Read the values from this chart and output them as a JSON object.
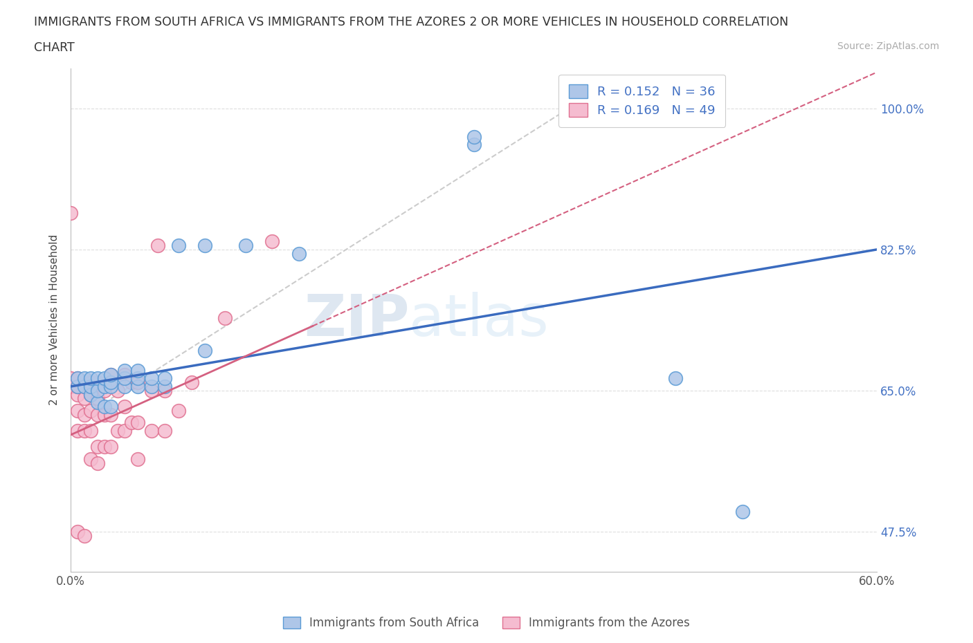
{
  "title_line1": "IMMIGRANTS FROM SOUTH AFRICA VS IMMIGRANTS FROM THE AZORES 2 OR MORE VEHICLES IN HOUSEHOLD CORRELATION",
  "title_line2": "CHART",
  "source_text": "Source: ZipAtlas.com",
  "ylabel": "2 or more Vehicles in Household",
  "xlim": [
    0.0,
    0.6
  ],
  "ylim": [
    0.425,
    1.05
  ],
  "ytick_labels": [
    "47.5%",
    "65.0%",
    "82.5%",
    "100.0%"
  ],
  "ytick_values": [
    0.475,
    0.65,
    0.825,
    1.0
  ],
  "xtick_values": [
    0.0,
    0.1,
    0.2,
    0.3,
    0.4,
    0.5,
    0.6
  ],
  "xtick_labels": [
    "0.0%",
    "",
    "",
    "",
    "",
    "",
    "60.0%"
  ],
  "r_blue": 0.152,
  "n_blue": 36,
  "r_pink": 0.169,
  "n_pink": 49,
  "legend_label_blue": "Immigrants from South Africa",
  "legend_label_pink": "Immigrants from the Azores",
  "blue_color": "#aec6e8",
  "pink_color": "#f5bcd0",
  "blue_edge": "#5b9bd5",
  "pink_edge": "#e07090",
  "trend_blue": "#3a6bbf",
  "trend_pink": "#d46080",
  "trend_gray": "#cccccc",
  "watermark_zip": "ZIP",
  "watermark_atlas": "atlas",
  "blue_scatter_x": [
    0.005,
    0.005,
    0.01,
    0.01,
    0.015,
    0.015,
    0.015,
    0.02,
    0.02,
    0.02,
    0.025,
    0.025,
    0.025,
    0.03,
    0.03,
    0.03,
    0.03,
    0.04,
    0.04,
    0.04,
    0.05,
    0.05,
    0.05,
    0.06,
    0.06,
    0.07,
    0.07,
    0.08,
    0.1,
    0.1,
    0.13,
    0.17,
    0.3,
    0.3,
    0.45,
    0.5
  ],
  "blue_scatter_y": [
    0.655,
    0.665,
    0.655,
    0.665,
    0.645,
    0.655,
    0.665,
    0.635,
    0.65,
    0.665,
    0.63,
    0.655,
    0.665,
    0.63,
    0.655,
    0.66,
    0.67,
    0.655,
    0.665,
    0.675,
    0.655,
    0.665,
    0.675,
    0.655,
    0.665,
    0.655,
    0.665,
    0.83,
    0.7,
    0.83,
    0.83,
    0.82,
    0.955,
    0.965,
    0.665,
    0.5
  ],
  "pink_scatter_x": [
    0.0,
    0.0,
    0.0,
    0.005,
    0.005,
    0.005,
    0.005,
    0.005,
    0.005,
    0.01,
    0.01,
    0.01,
    0.01,
    0.01,
    0.015,
    0.015,
    0.015,
    0.015,
    0.015,
    0.02,
    0.02,
    0.02,
    0.02,
    0.02,
    0.025,
    0.025,
    0.025,
    0.03,
    0.03,
    0.03,
    0.035,
    0.035,
    0.04,
    0.04,
    0.04,
    0.045,
    0.045,
    0.05,
    0.05,
    0.05,
    0.06,
    0.06,
    0.065,
    0.07,
    0.07,
    0.08,
    0.09,
    0.115,
    0.15
  ],
  "pink_scatter_y": [
    0.655,
    0.665,
    0.87,
    0.475,
    0.6,
    0.625,
    0.645,
    0.655,
    0.665,
    0.47,
    0.6,
    0.62,
    0.64,
    0.655,
    0.565,
    0.6,
    0.625,
    0.645,
    0.66,
    0.56,
    0.58,
    0.62,
    0.64,
    0.66,
    0.58,
    0.62,
    0.65,
    0.58,
    0.62,
    0.67,
    0.6,
    0.65,
    0.6,
    0.63,
    0.67,
    0.61,
    0.66,
    0.565,
    0.61,
    0.66,
    0.6,
    0.65,
    0.83,
    0.6,
    0.65,
    0.625,
    0.66,
    0.74,
    0.835
  ]
}
